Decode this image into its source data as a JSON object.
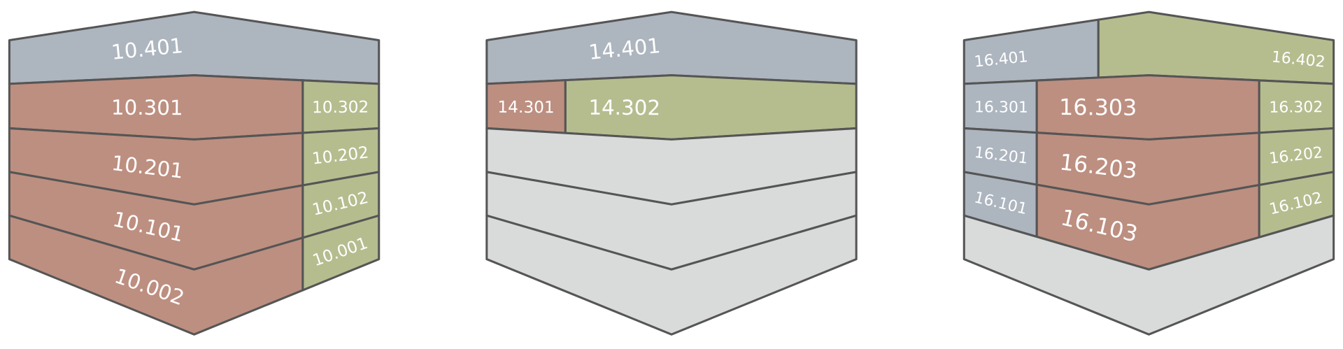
{
  "buildings": [
    {
      "units": [
        "10.401",
        "10.301",
        "10.302",
        "10.201",
        "10.202",
        "10.101",
        "10.102",
        "10.002",
        "10.001"
      ]
    },
    {
      "units": [
        "14.401",
        "14.301",
        "14.302"
      ]
    },
    {
      "units": [
        "16.401",
        "16.402",
        "16.301",
        "16.303",
        "16.302",
        "16.201",
        "16.203",
        "16.202",
        "16.101",
        "16.103",
        "16.102"
      ]
    }
  ]
}
